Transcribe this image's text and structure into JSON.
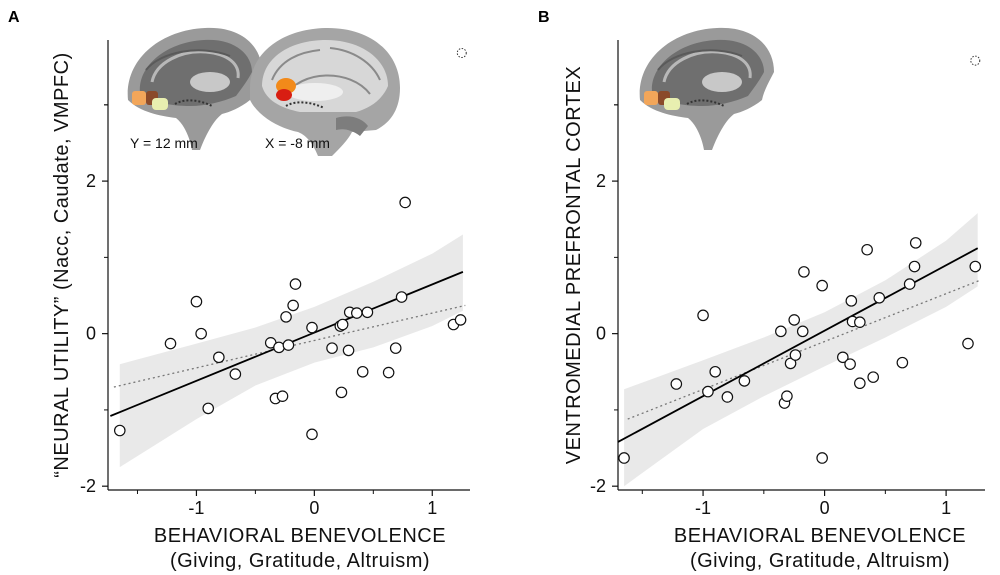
{
  "chart_data": [
    {
      "panel_label": "A",
      "type": "scatter",
      "xlabel_line1": "BEHAVIORAL BENEVOLENCE",
      "xlabel_line2": "(Giving, Gratitude, Altruism)",
      "ylabel": "“NEURAL UTILITY” (Nacc, Caudate, VMPFC)",
      "x_ticks": [
        -1,
        0,
        1
      ],
      "x_tick_labels": [
        "-1",
        "0",
        "1"
      ],
      "y_ticks": [
        -2,
        0,
        2
      ],
      "y_tick_labels": [
        "-2",
        "0",
        "2"
      ],
      "xlim": [
        -1.75,
        1.32
      ],
      "ylim": [
        -2.05,
        3.85
      ],
      "brain_labels": [
        "Y = 12 mm",
        "X = -8 mm"
      ],
      "points": [
        {
          "x": -1.65,
          "y": -1.27
        },
        {
          "x": -1.22,
          "y": -0.13
        },
        {
          "x": -1.0,
          "y": 0.42
        },
        {
          "x": -0.96,
          "y": 0.0
        },
        {
          "x": -0.9,
          "y": -0.98
        },
        {
          "x": -0.81,
          "y": -0.31
        },
        {
          "x": -0.67,
          "y": -0.53
        },
        {
          "x": -0.37,
          "y": -0.12
        },
        {
          "x": -0.33,
          "y": -0.85
        },
        {
          "x": -0.3,
          "y": -0.18
        },
        {
          "x": -0.27,
          "y": -0.82
        },
        {
          "x": -0.24,
          "y": 0.22
        },
        {
          "x": -0.22,
          "y": -0.15
        },
        {
          "x": -0.18,
          "y": 0.37
        },
        {
          "x": -0.16,
          "y": 0.65
        },
        {
          "x": -0.02,
          "y": 0.08
        },
        {
          "x": -0.02,
          "y": -1.32
        },
        {
          "x": 0.15,
          "y": -0.19
        },
        {
          "x": 0.22,
          "y": 0.1
        },
        {
          "x": 0.23,
          "y": -0.77
        },
        {
          "x": 0.24,
          "y": 0.12
        },
        {
          "x": 0.29,
          "y": -0.22
        },
        {
          "x": 0.3,
          "y": 0.28
        },
        {
          "x": 0.36,
          "y": 0.27
        },
        {
          "x": 0.41,
          "y": -0.5
        },
        {
          "x": 0.45,
          "y": 0.28
        },
        {
          "x": 0.63,
          "y": -0.51
        },
        {
          "x": 0.69,
          "y": -0.19
        },
        {
          "x": 0.74,
          "y": 0.48
        },
        {
          "x": 0.77,
          "y": 1.72
        },
        {
          "x": 1.18,
          "y": 0.12
        },
        {
          "x": 1.24,
          "y": 0.18
        }
      ],
      "outlier_marker": {
        "x": 1.25,
        "y": 3.68
      },
      "fit_solid": {
        "x": [
          -1.73,
          1.26
        ],
        "y": [
          -1.08,
          0.81
        ]
      },
      "fit_dotted": {
        "x": [
          -1.7,
          1.28
        ],
        "y": [
          -0.7,
          0.37
        ]
      },
      "ci_band": {
        "x": [
          -1.65,
          -1.0,
          -0.5,
          0.0,
          0.5,
          1.0,
          1.26
        ],
        "upper": [
          -0.4,
          -0.13,
          0.08,
          0.35,
          0.68,
          1.05,
          1.3
        ],
        "lower": [
          -1.75,
          -1.12,
          -0.68,
          -0.38,
          -0.18,
          0.1,
          0.3
        ]
      }
    },
    {
      "panel_label": "B",
      "type": "scatter",
      "xlabel_line1": "BEHAVIORAL BENEVOLENCE",
      "xlabel_line2": "(Giving, Gratitude, Altruism)",
      "ylabel": "VENTROMEDIAL PREFRONTAL CORTEX",
      "x_ticks": [
        -1,
        0,
        1
      ],
      "x_tick_labels": [
        "-1",
        "0",
        "1"
      ],
      "y_ticks": [
        -2,
        0,
        2
      ],
      "y_tick_labels": [
        "-2",
        "0",
        "2"
      ],
      "xlim": [
        -1.7,
        1.32
      ],
      "ylim": [
        -2.05,
        3.85
      ],
      "points": [
        {
          "x": -1.65,
          "y": -1.63
        },
        {
          "x": -1.22,
          "y": -0.66
        },
        {
          "x": -1.0,
          "y": 0.24
        },
        {
          "x": -0.96,
          "y": -0.76
        },
        {
          "x": -0.9,
          "y": -0.5
        },
        {
          "x": -0.8,
          "y": -0.83
        },
        {
          "x": -0.66,
          "y": -0.62
        },
        {
          "x": -0.36,
          "y": 0.03
        },
        {
          "x": -0.33,
          "y": -0.91
        },
        {
          "x": -0.31,
          "y": -0.82
        },
        {
          "x": -0.28,
          "y": -0.39
        },
        {
          "x": -0.25,
          "y": 0.18
        },
        {
          "x": -0.24,
          "y": -0.28
        },
        {
          "x": -0.18,
          "y": 0.03
        },
        {
          "x": -0.17,
          "y": 0.81
        },
        {
          "x": -0.02,
          "y": 0.63
        },
        {
          "x": -0.02,
          "y": -1.63
        },
        {
          "x": 0.15,
          "y": -0.31
        },
        {
          "x": 0.21,
          "y": -0.4
        },
        {
          "x": 0.22,
          "y": 0.43
        },
        {
          "x": 0.23,
          "y": 0.16
        },
        {
          "x": 0.29,
          "y": 0.15
        },
        {
          "x": 0.29,
          "y": -0.65
        },
        {
          "x": 0.35,
          "y": 1.1
        },
        {
          "x": 0.4,
          "y": -0.57
        },
        {
          "x": 0.45,
          "y": 0.47
        },
        {
          "x": 0.64,
          "y": -0.38
        },
        {
          "x": 0.7,
          "y": 0.65
        },
        {
          "x": 0.74,
          "y": 0.88
        },
        {
          "x": 0.75,
          "y": 1.19
        },
        {
          "x": 1.18,
          "y": -0.13
        },
        {
          "x": 1.24,
          "y": 0.88
        }
      ],
      "outlier_marker": {
        "x": 1.24,
        "y": 3.58
      },
      "fit_solid": {
        "x": [
          -1.7,
          1.26
        ],
        "y": [
          -1.42,
          1.12
        ]
      },
      "fit_dotted": {
        "x": [
          -1.62,
          1.28
        ],
        "y": [
          -1.12,
          0.7
        ]
      },
      "ci_band": {
        "x": [
          -1.65,
          -1.0,
          -0.5,
          0.0,
          0.5,
          1.0,
          1.26
        ],
        "upper": [
          -0.73,
          -0.35,
          -0.05,
          0.28,
          0.7,
          1.22,
          1.58
        ],
        "lower": [
          -2.0,
          -1.25,
          -0.82,
          -0.43,
          -0.05,
          0.35,
          0.62
        ]
      }
    }
  ]
}
